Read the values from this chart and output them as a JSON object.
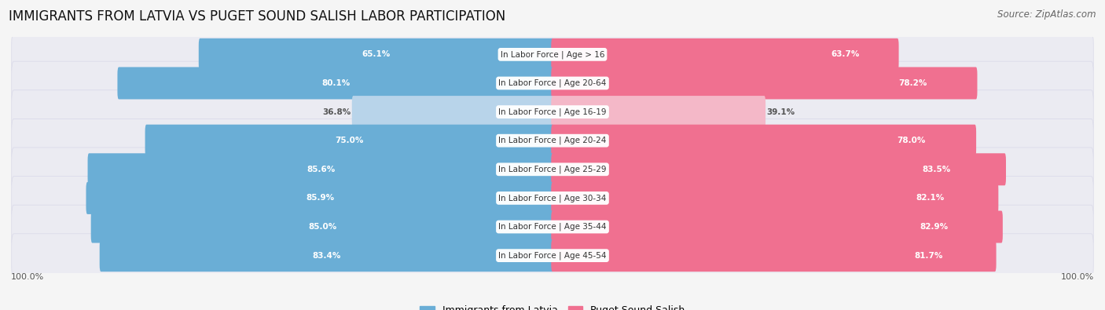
{
  "title": "IMMIGRANTS FROM LATVIA VS PUGET SOUND SALISH LABOR PARTICIPATION",
  "source": "Source: ZipAtlas.com",
  "categories": [
    "In Labor Force | Age > 16",
    "In Labor Force | Age 20-64",
    "In Labor Force | Age 16-19",
    "In Labor Force | Age 20-24",
    "In Labor Force | Age 25-29",
    "In Labor Force | Age 30-34",
    "In Labor Force | Age 35-44",
    "In Labor Force | Age 45-54"
  ],
  "latvia_values": [
    65.1,
    80.1,
    36.8,
    75.0,
    85.6,
    85.9,
    85.0,
    83.4
  ],
  "salish_values": [
    63.7,
    78.2,
    39.1,
    78.0,
    83.5,
    82.1,
    82.9,
    81.7
  ],
  "latvia_color": "#6aaed6",
  "latvia_color_light": "#b8d4ea",
  "salish_color": "#f07090",
  "salish_color_light": "#f4b8c8",
  "row_bg_color": "#e8e8f0",
  "row_bg_color2": "#f0f0f8",
  "label_color_white": "#ffffff",
  "label_color_dark": "#555555",
  "max_value": 100.0,
  "legend_latvia": "Immigrants from Latvia",
  "legend_salish": "Puget Sound Salish",
  "title_fontsize": 12,
  "source_fontsize": 8.5,
  "label_fontsize": 7.5,
  "category_fontsize": 7.5,
  "axis_label_fontsize": 8
}
